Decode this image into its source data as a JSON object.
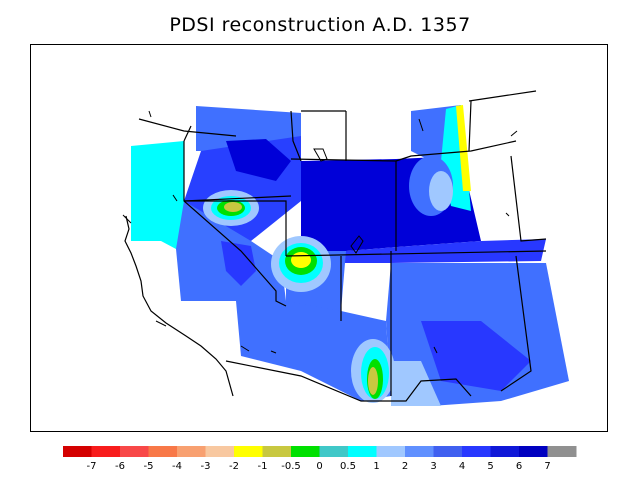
{
  "title": "PDSI reconstruction A.D. 1357",
  "colorbar": {
    "colors": [
      "#d40000",
      "#f81c1c",
      "#f84848",
      "#f87848",
      "#f8a070",
      "#f8c8a0",
      "#ffff00",
      "#c8c840",
      "#00e000",
      "#40c8c8",
      "#00ffff",
      "#a0c8ff",
      "#6090ff",
      "#4060f0",
      "#2838ff",
      "#1018d8",
      "#0000c0",
      "#909090"
    ],
    "labels": [
      "-7",
      "-6",
      "-5",
      "-4",
      "-3",
      "-2",
      "-1",
      "-0.5",
      "0",
      "0.5",
      "1",
      "2",
      "3",
      "4",
      "5",
      "6",
      "7"
    ]
  },
  "legend_colors": {
    "deep_blue": "#0000d8",
    "blue": "#2840ff",
    "mid_blue": "#4070ff",
    "light_blue": "#a0c8ff",
    "cyan": "#00ffff",
    "teal": "#40c8c8",
    "green": "#00e000",
    "olive": "#c8c840",
    "yellow": "#ffff00"
  }
}
